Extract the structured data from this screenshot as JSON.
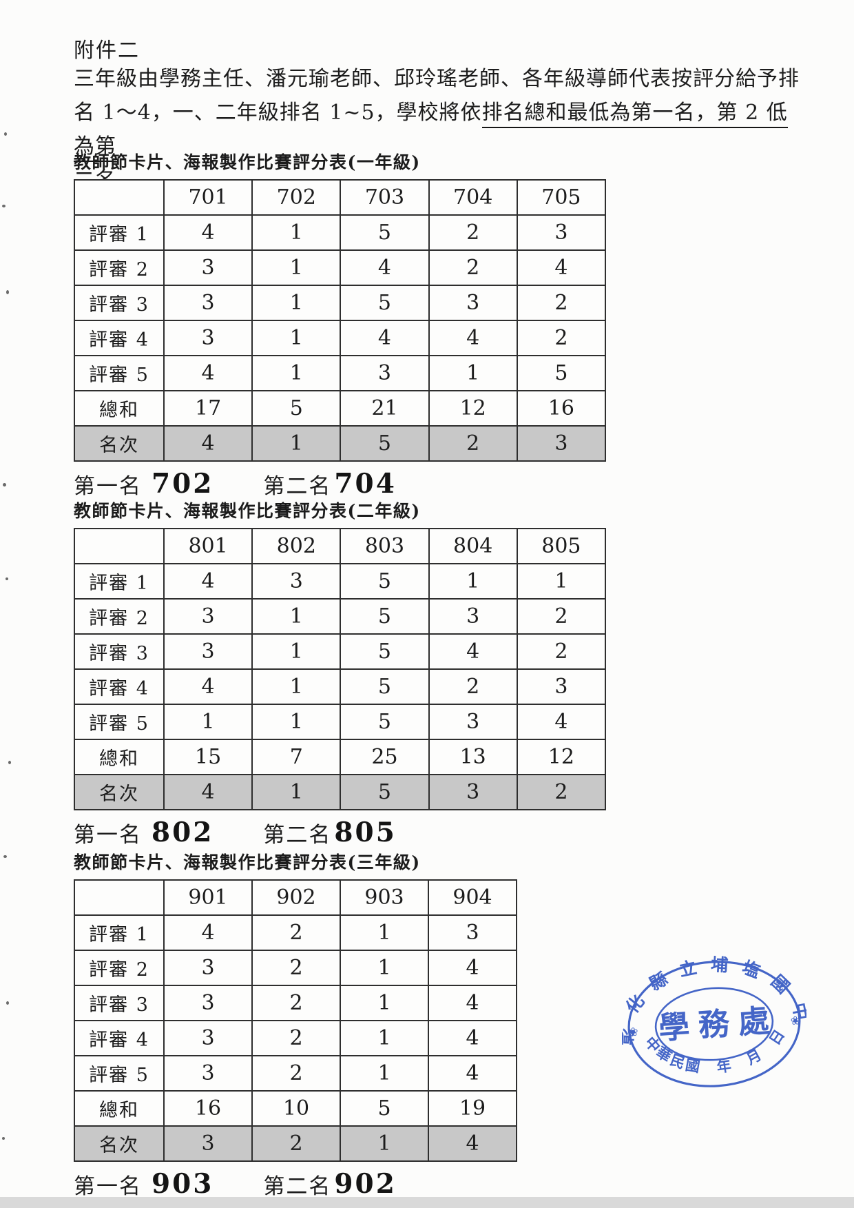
{
  "document": {
    "attachment_label": "附件二",
    "intro_line1": "三年級由學務主任、潘元瑜老師、邱玲瑤老師、各年級導師代表按評分給予排",
    "intro_line2_normal": "名 1～4，一、二年級排名 1~5，學校將依",
    "intro_line2_underlined": "排名總和最低為第一名，第 2 低為第",
    "intro_line3_underlined": "二名。"
  },
  "tables": [
    {
      "title": "教師節卡片、海報製作比賽評分表(一年級)",
      "columns": [
        "701",
        "702",
        "703",
        "704",
        "705"
      ],
      "rows": [
        {
          "label": "評審 1",
          "values": [
            4,
            1,
            5,
            2,
            3
          ]
        },
        {
          "label": "評審 2",
          "values": [
            3,
            1,
            4,
            2,
            4
          ]
        },
        {
          "label": "評審 3",
          "values": [
            3,
            1,
            5,
            3,
            2
          ]
        },
        {
          "label": "評審 4",
          "values": [
            3,
            1,
            4,
            4,
            2
          ]
        },
        {
          "label": "評審 5",
          "values": [
            4,
            1,
            3,
            1,
            5
          ]
        },
        {
          "label": "總和",
          "values": [
            17,
            5,
            21,
            12,
            16
          ]
        },
        {
          "label": "名次",
          "values": [
            4,
            1,
            5,
            2,
            3
          ],
          "highlight": true
        }
      ],
      "first_place_label": "第一名",
      "first_place_value": "702",
      "second_place_label": "第二名",
      "second_place_value": "704"
    },
    {
      "title": "教師節卡片、海報製作比賽評分表(二年級)",
      "columns": [
        "801",
        "802",
        "803",
        "804",
        "805"
      ],
      "rows": [
        {
          "label": "評審 1",
          "values": [
            4,
            3,
            5,
            1,
            1
          ]
        },
        {
          "label": "評審 2",
          "values": [
            3,
            1,
            5,
            3,
            2
          ]
        },
        {
          "label": "評審 3",
          "values": [
            3,
            1,
            5,
            4,
            2
          ]
        },
        {
          "label": "評審 4",
          "values": [
            4,
            1,
            5,
            2,
            3
          ]
        },
        {
          "label": "評審 5",
          "values": [
            1,
            1,
            5,
            3,
            4
          ]
        },
        {
          "label": "總和",
          "values": [
            15,
            7,
            25,
            13,
            12
          ]
        },
        {
          "label": "名次",
          "values": [
            4,
            1,
            5,
            3,
            2
          ],
          "highlight": true
        }
      ],
      "first_place_label": "第一名",
      "first_place_value": "802",
      "second_place_label": "第二名",
      "second_place_value": "805"
    },
    {
      "title": "教師節卡片、海報製作比賽評分表(三年級)",
      "columns": [
        "901",
        "902",
        "903",
        "904"
      ],
      "rows": [
        {
          "label": "評審 1",
          "values": [
            4,
            2,
            1,
            3
          ]
        },
        {
          "label": "評審 2",
          "values": [
            3,
            2,
            1,
            4
          ]
        },
        {
          "label": "評審 3",
          "values": [
            3,
            2,
            1,
            4
          ]
        },
        {
          "label": "評審 4",
          "values": [
            3,
            2,
            1,
            4
          ]
        },
        {
          "label": "評審 5",
          "values": [
            3,
            2,
            1,
            4
          ]
        },
        {
          "label": "總和",
          "values": [
            16,
            10,
            5,
            19
          ]
        },
        {
          "label": "名次",
          "values": [
            3,
            2,
            1,
            4
          ],
          "highlight": true
        }
      ],
      "first_place_label": "第一名",
      "first_place_value": "903",
      "second_place_label": "第二名",
      "second_place_value": "902"
    }
  ],
  "stamp": {
    "arc_top_text": "彰化縣立埔塩國中",
    "center_text": "學務處",
    "arc_bottom_text": "中華民國　年　月　日",
    "flower_icon": "❀",
    "ink_color": "#2b51c0"
  }
}
